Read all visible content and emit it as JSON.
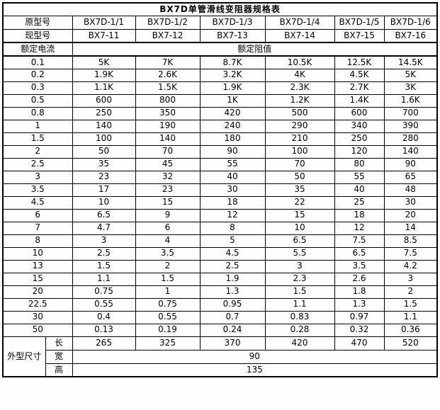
{
  "title": "BX7D单管滑线变阻器规格表",
  "header": {
    "original_model_label": "原型号",
    "original_models": [
      "BX7D-1/1",
      "BX7D-1/2",
      "BX7D-1/3",
      "BX7D-1/4",
      "BX7D-1/5",
      "BX7D-1/6"
    ],
    "current_model_label": "现型号",
    "current_models": [
      "BX7-11",
      "BX7-12",
      "BX7-13",
      "BX7-14",
      "BX7-15",
      "BX7-16"
    ],
    "rated_current_label": "额定电流",
    "rated_resistance_label": "额定阻值"
  },
  "rows": [
    {
      "current": "0.1",
      "values": [
        "5K",
        "7K",
        "8.7K",
        "10.5K",
        "12.5K",
        "14.5K"
      ]
    },
    {
      "current": "0.2",
      "values": [
        "1.9K",
        "2.6K",
        "3.2K",
        "4K",
        "4.5K",
        "5K"
      ]
    },
    {
      "current": "0.3",
      "values": [
        "1.1K",
        "1.5K",
        "1.9K",
        "2.3K",
        "2.7K",
        "3K"
      ]
    },
    {
      "current": "0.5",
      "values": [
        "600",
        "800",
        "1K",
        "1.2K",
        "1.4K",
        "1.6K"
      ]
    },
    {
      "current": "0.8",
      "values": [
        "250",
        "350",
        "420",
        "500",
        "600",
        "700"
      ]
    },
    {
      "current": "1",
      "values": [
        "140",
        "190",
        "240",
        "290",
        "340",
        "390"
      ]
    },
    {
      "current": "1.5",
      "values": [
        "100",
        "140",
        "180",
        "210",
        "250",
        "280"
      ]
    },
    {
      "current": "2",
      "values": [
        "50",
        "70",
        "90",
        "100",
        "120",
        "140"
      ]
    },
    {
      "current": "2.5",
      "values": [
        "35",
        "45",
        "55",
        "70",
        "80",
        "90"
      ]
    },
    {
      "current": "3",
      "values": [
        "23",
        "32",
        "40",
        "50",
        "55",
        "65"
      ]
    },
    {
      "current": "3.5",
      "values": [
        "17",
        "23",
        "30",
        "35",
        "40",
        "48"
      ]
    },
    {
      "current": "4.5",
      "values": [
        "10",
        "15",
        "18",
        "22",
        "25",
        "30"
      ]
    },
    {
      "current": "6",
      "values": [
        "6.5",
        "9",
        "12",
        "15",
        "18",
        "20"
      ]
    },
    {
      "current": "7",
      "values": [
        "4.7",
        "6",
        "8",
        "10",
        "12",
        "14"
      ]
    },
    {
      "current": "8",
      "values": [
        "3",
        "4",
        "5",
        "6.5",
        "7.5",
        "8.5"
      ]
    },
    {
      "current": "10",
      "values": [
        "2.5",
        "3.5",
        "4.5",
        "5.5",
        "6.5",
        "7.5"
      ]
    },
    {
      "current": "13",
      "values": [
        "1.5",
        "2",
        "2.5",
        "3",
        "3.5",
        "4.2"
      ]
    },
    {
      "current": "15",
      "values": [
        "1.1",
        "1.5",
        "1.9",
        "2.3",
        "2.6",
        "3"
      ]
    },
    {
      "current": "20",
      "values": [
        "0.75",
        "1",
        "1.3",
        "1.5",
        "1.8",
        "2"
      ]
    },
    {
      "current": "22.5",
      "values": [
        "0.55",
        "0.75",
        "0.95",
        "1.1",
        "1.3",
        "1.5"
      ]
    },
    {
      "current": "30",
      "values": [
        "0.4",
        "0.55",
        "0.7",
        "0.83",
        "0.97",
        "1.1"
      ]
    },
    {
      "current": "50",
      "values": [
        "0.13",
        "0.19",
        "0.24",
        "0.28",
        "0.32",
        "0.36"
      ]
    }
  ],
  "dimensions": {
    "label": "外型尺寸",
    "length_label": "长",
    "length_values": [
      "265",
      "325",
      "370",
      "420",
      "470",
      "520"
    ],
    "width_label": "宽",
    "width_value": "90",
    "height_label": "高",
    "height_value": "135"
  },
  "colors": {
    "border": "#000000",
    "background": "#ffffff",
    "text": "#000000"
  }
}
